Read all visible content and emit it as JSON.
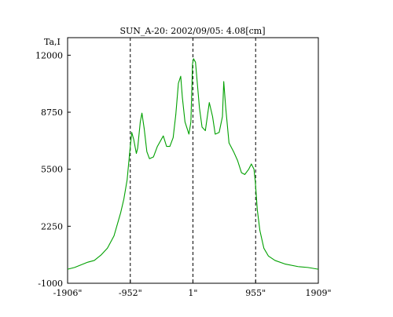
{
  "chart_data": {
    "type": "line",
    "title": "SUN_A-20: 2002/09/05: 4.08[cm]",
    "ylabel": "Ta,I",
    "xlabel": "",
    "x_tick_labels": [
      "-1906\"",
      "-952\"",
      "1\"",
      "955\"",
      "1909\""
    ],
    "x_ticks": [
      -1906,
      -952,
      1,
      955,
      1909
    ],
    "y_tick_labels": [
      "12000",
      "8750",
      "5500",
      "2250",
      "-1000"
    ],
    "y_ticks": [
      12000,
      8750,
      5500,
      2250,
      -1000
    ],
    "xlim": [
      -1906,
      1909
    ],
    "ylim": [
      -1000,
      13000
    ],
    "grid": false,
    "reference_lines_x": [
      -952,
      1,
      955
    ],
    "series": [
      {
        "color": "#00a000",
        "points": [
          [
            -1906,
            -200
          ],
          [
            -1800,
            -100
          ],
          [
            -1700,
            50
          ],
          [
            -1600,
            200
          ],
          [
            -1500,
            300
          ],
          [
            -1400,
            600
          ],
          [
            -1300,
            1000
          ],
          [
            -1200,
            1700
          ],
          [
            -1100,
            3000
          ],
          [
            -1050,
            3800
          ],
          [
            -1000,
            4900
          ],
          [
            -960,
            6500
          ],
          [
            -930,
            7600
          ],
          [
            -900,
            7200
          ],
          [
            -860,
            6400
          ],
          [
            -840,
            6700
          ],
          [
            -800,
            8200
          ],
          [
            -775,
            8700
          ],
          [
            -740,
            7800
          ],
          [
            -700,
            6500
          ],
          [
            -660,
            6100
          ],
          [
            -600,
            6200
          ],
          [
            -540,
            6800
          ],
          [
            -450,
            7400
          ],
          [
            -400,
            6800
          ],
          [
            -350,
            6800
          ],
          [
            -300,
            7300
          ],
          [
            -260,
            8600
          ],
          [
            -220,
            10400
          ],
          [
            -185,
            10800
          ],
          [
            -160,
            9600
          ],
          [
            -120,
            8200
          ],
          [
            -60,
            7500
          ],
          [
            -30,
            8200
          ],
          [
            -5,
            11500
          ],
          [
            10,
            11800
          ],
          [
            40,
            11600
          ],
          [
            70,
            10300
          ],
          [
            100,
            9000
          ],
          [
            140,
            7900
          ],
          [
            190,
            7700
          ],
          [
            250,
            9300
          ],
          [
            300,
            8500
          ],
          [
            340,
            7500
          ],
          [
            400,
            7600
          ],
          [
            450,
            8500
          ],
          [
            470,
            10500
          ],
          [
            500,
            9000
          ],
          [
            550,
            7000
          ],
          [
            620,
            6500
          ],
          [
            680,
            6000
          ],
          [
            740,
            5300
          ],
          [
            790,
            5200
          ],
          [
            850,
            5500
          ],
          [
            890,
            5800
          ],
          [
            930,
            5500
          ],
          [
            950,
            4800
          ],
          [
            980,
            3200
          ],
          [
            1020,
            2000
          ],
          [
            1080,
            1000
          ],
          [
            1150,
            550
          ],
          [
            1250,
            300
          ],
          [
            1400,
            100
          ],
          [
            1600,
            -50
          ],
          [
            1750,
            -100
          ],
          [
            1909,
            -200
          ]
        ]
      }
    ]
  }
}
